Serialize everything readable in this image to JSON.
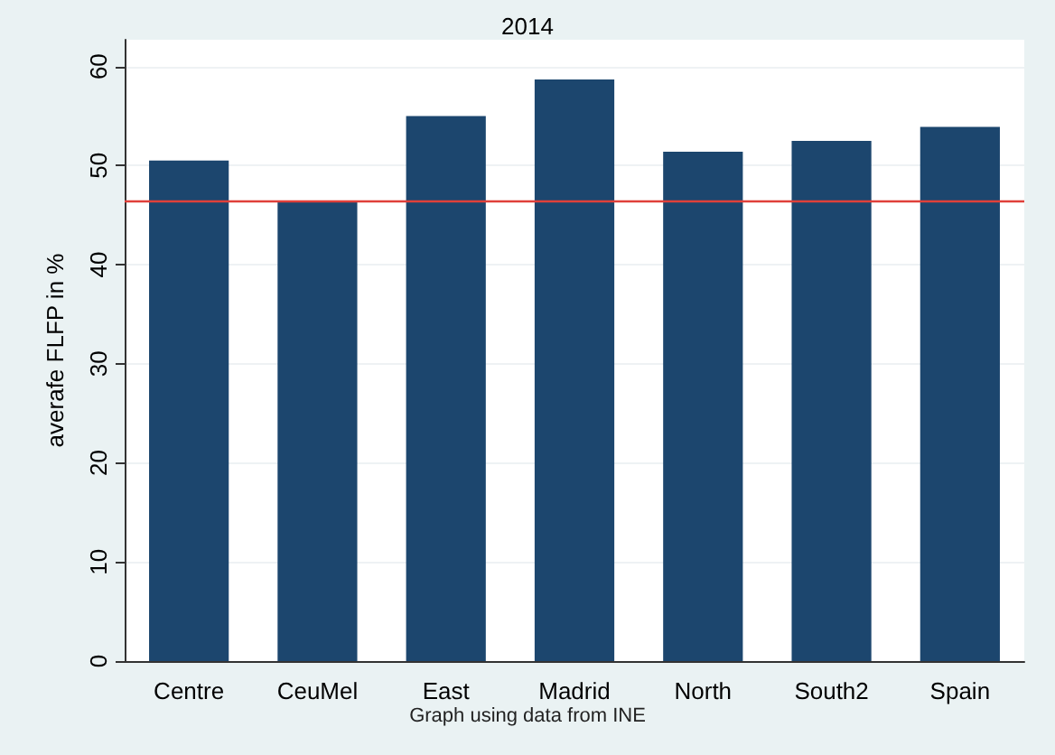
{
  "chart_data": {
    "type": "bar",
    "title": "2014",
    "ylabel": "averafe FLFP in %",
    "annotations": [
      "Graph using data from INE"
    ],
    "categories": [
      "Centre",
      "CeuMel",
      "East",
      "Madrid",
      "North",
      "South2",
      "Spain"
    ],
    "values": [
      50.5,
      46.4,
      55.0,
      58.7,
      51.4,
      52.5,
      53.9
    ],
    "color": "#1c466e",
    "ylim": [
      0,
      62.7
    ],
    "yticks": [
      0,
      10,
      20,
      30,
      40,
      50,
      60
    ],
    "grid": "y",
    "ref_lines": [
      {
        "axis": "y",
        "value": 46.5,
        "color": "#e0403a"
      }
    ]
  }
}
